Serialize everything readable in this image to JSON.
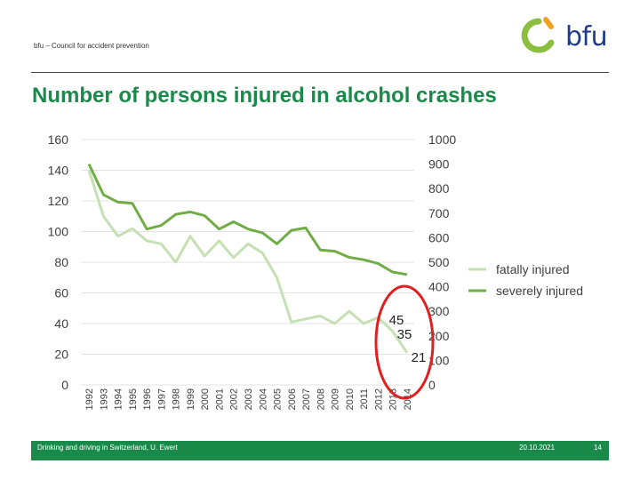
{
  "header": {
    "note": "bfu – Council for accident prevention",
    "logo_text": "bfu"
  },
  "colors": {
    "fatal": "#c5e0b3",
    "severe": "#70ad47",
    "highlight": "#e02020",
    "brand": "#1a8a4a"
  },
  "chart_data": {
    "type": "line",
    "title": "Number of persons injured in alcohol crashes",
    "categories": [
      "1992",
      "1993",
      "1994",
      "1995",
      "1996",
      "1997",
      "1998",
      "1999",
      "2000",
      "2001",
      "2002",
      "2003",
      "2004",
      "2005",
      "2006",
      "2007",
      "2008",
      "2009",
      "2010",
      "2011",
      "2012",
      "2013",
      "2014"
    ],
    "y_left": {
      "min": 0,
      "max": 160,
      "ticks": [
        "0",
        "20",
        "40",
        "60",
        "80",
        "100",
        "120",
        "140",
        "160"
      ]
    },
    "y_right": {
      "min": 0,
      "max": 1000,
      "ticks": [
        "0",
        "100",
        "200",
        "300",
        "400",
        "500",
        "600",
        "700",
        "800",
        "900",
        "1000"
      ]
    },
    "grid": true,
    "legend_position": "right",
    "series": [
      {
        "name": "fatally injured",
        "axis": "left",
        "values": [
          140,
          110,
          97,
          102,
          94,
          92,
          80,
          97,
          84,
          94,
          83,
          92,
          86,
          70,
          41,
          43,
          45,
          40,
          48,
          40,
          44,
          35,
          21
        ]
      },
      {
        "name": "severely injured",
        "axis": "right",
        "values": [
          900,
          775,
          745,
          740,
          635,
          650,
          695,
          705,
          690,
          635,
          665,
          635,
          620,
          575,
          630,
          640,
          550,
          545,
          520,
          510,
          495,
          460,
          450
        ]
      }
    ],
    "annotations": [
      "45",
      "35",
      "21"
    ]
  },
  "footer": {
    "left": "Drinking and driving in Switzerland, U. Ewert",
    "date": "20.10.2021",
    "page": "14"
  }
}
